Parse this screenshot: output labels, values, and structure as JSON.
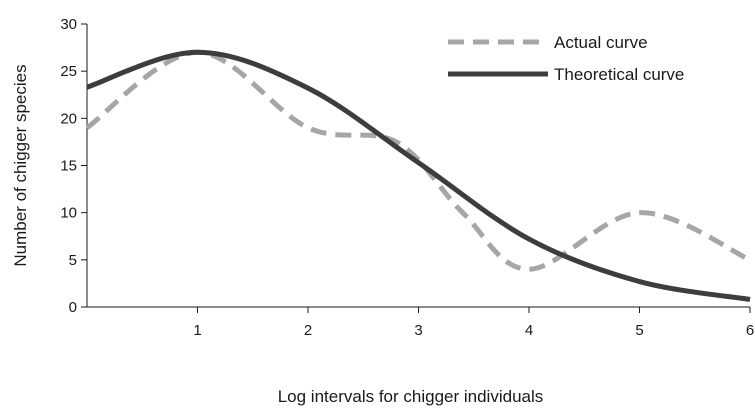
{
  "chart_data": {
    "type": "line",
    "xlabel": "Log intervals for chigger individuals",
    "ylabel": "Number of chigger species",
    "xlim": [
      0,
      6
    ],
    "ylim": [
      0,
      30
    ],
    "x_ticks": [
      1,
      2,
      3,
      4,
      5,
      6
    ],
    "y_ticks": [
      0,
      5,
      10,
      15,
      20,
      25,
      30
    ],
    "grid": false,
    "legend_position": "top-right",
    "series": [
      {
        "name": "Actual curve",
        "style": "dashed",
        "color": "#a6a6a6",
        "x": [
          0,
          1,
          2,
          2.8,
          3.4,
          4,
          5,
          6
        ],
        "y": [
          19,
          27,
          19,
          17.5,
          10,
          4,
          10,
          5
        ]
      },
      {
        "name": "Theoretical curve",
        "style": "solid",
        "color": "#3d3d3d",
        "x": [
          0,
          1,
          2,
          3,
          4,
          5,
          6
        ],
        "y": [
          23.3,
          27,
          23.2,
          15.3,
          7.2,
          2.7,
          0.8
        ]
      }
    ]
  }
}
